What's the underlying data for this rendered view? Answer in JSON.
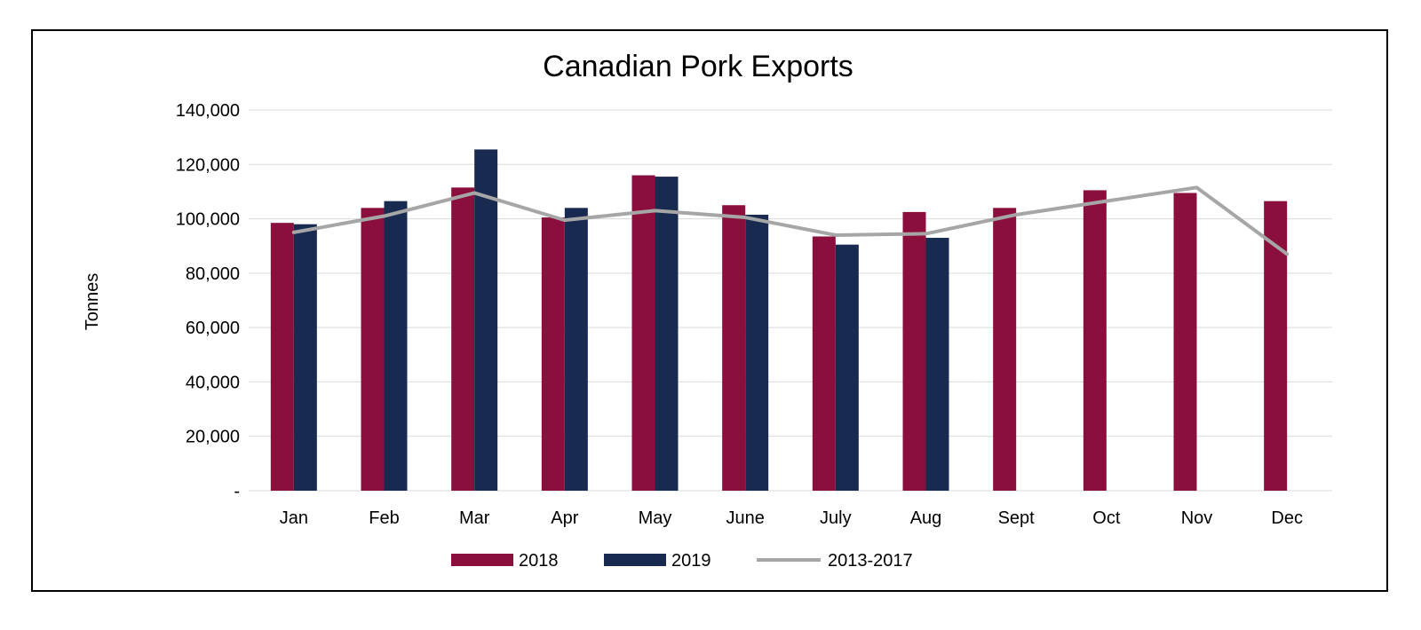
{
  "colors": {
    "series_2018": "#8b0f3c",
    "series_2019": "#182a4f",
    "series_avg": "#a6a6a6",
    "gridline": "#d9d9d9",
    "frame": "#000000",
    "text": "#000000"
  },
  "chart_data": {
    "type": "bar",
    "title": "Canadian Pork Exports",
    "xlabel": "",
    "ylabel": "Tonnes",
    "ylim": [
      0,
      140000
    ],
    "yticks": [
      0,
      20000,
      40000,
      60000,
      80000,
      100000,
      120000,
      140000
    ],
    "ytick_labels": [
      "-",
      "20,000",
      "40,000",
      "60,000",
      "80,000",
      "100,000",
      "120,000",
      "140,000"
    ],
    "grid": true,
    "legend_position": "bottom",
    "categories": [
      "Jan",
      "Feb",
      "Mar",
      "Apr",
      "May",
      "June",
      "July",
      "Aug",
      "Sept",
      "Oct",
      "Nov",
      "Dec"
    ],
    "series": [
      {
        "name": "2018",
        "type": "bar",
        "color": "#8b0f3c",
        "values": [
          98500,
          104000,
          111500,
          100500,
          116000,
          105000,
          93500,
          102500,
          104000,
          110500,
          109500,
          106500
        ]
      },
      {
        "name": "2019",
        "type": "bar",
        "color": "#182a4f",
        "values": [
          98000,
          106500,
          125500,
          104000,
          115500,
          101500,
          90500,
          93000,
          null,
          null,
          null,
          null
        ]
      },
      {
        "name": "2013-2017",
        "type": "line",
        "color": "#a6a6a6",
        "values": [
          95000,
          101000,
          109500,
          99500,
          103000,
          100500,
          94000,
          94500,
          101500,
          106500,
          111500,
          87000
        ]
      }
    ]
  }
}
